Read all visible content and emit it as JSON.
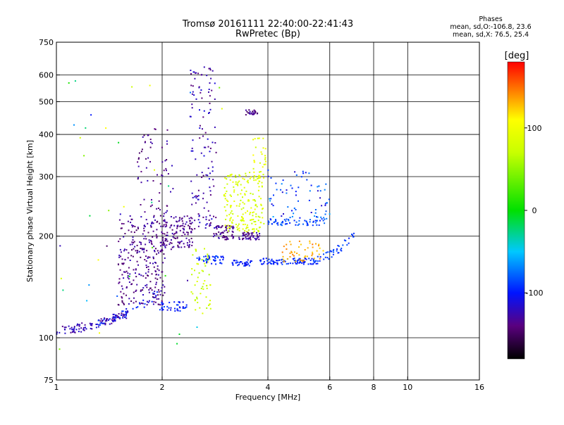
{
  "header": {
    "title_line1": "Tromsø 20161111 22:40:00-22:41:43",
    "title_line2": "RwPretec (Bp)"
  },
  "phases_box": {
    "heading": "Phases",
    "line_o": "mean, sd,O:-106.8, 23.6",
    "line_x": "mean, sd,X:  76.5, 25.4"
  },
  "chart_data": {
    "type": "scatter",
    "title": "Tromsø 20161111 22:40:00-22:41:43",
    "subtitle": "RwPretec (Bp)",
    "xlabel": "Frequency [MHz]",
    "ylabel": "Stationary phase Virtual Height [km]",
    "x_scale": "log",
    "y_scale": "log",
    "xlim": [
      1,
      16
    ],
    "ylim": [
      75,
      750
    ],
    "x_ticks": [
      1,
      2,
      4,
      6,
      8,
      10,
      16
    ],
    "x_tick_labels": [
      "1",
      "2",
      "4",
      "6",
      "8",
      "10",
      "16"
    ],
    "y_ticks": [
      75,
      100,
      200,
      300,
      400,
      500,
      600,
      750
    ],
    "y_tick_labels": [
      "75",
      "100",
      "200",
      "300",
      "400",
      "500",
      "600",
      "750"
    ],
    "grid": true,
    "colorbar": {
      "label": "[deg]",
      "range": [
        -180,
        180
      ],
      "ticks": [
        100,
        0,
        -100
      ],
      "tick_labels": [
        "100",
        "0",
        "-100"
      ],
      "stops": [
        {
          "value": -180,
          "color": "#000000"
        },
        {
          "value": -140,
          "color": "#5a007f"
        },
        {
          "value": -100,
          "color": "#0014ff"
        },
        {
          "value": -50,
          "color": "#00c8ff"
        },
        {
          "value": 0,
          "color": "#00e000"
        },
        {
          "value": 70,
          "color": "#c8ff00"
        },
        {
          "value": 110,
          "color": "#ffff00"
        },
        {
          "value": 140,
          "color": "#ff9000"
        },
        {
          "value": 180,
          "color": "#ff0000"
        }
      ]
    },
    "clusters": [
      {
        "f": [
          1.0,
          1.6
        ],
        "h": [
          105,
          118
        ],
        "phase": [
          -140,
          -110
        ],
        "n": 110,
        "shape": "rising"
      },
      {
        "f": [
          1.3,
          1.95
        ],
        "h": [
          112,
          135
        ],
        "phase": [
          -110,
          -85
        ],
        "n": 40,
        "shape": "rising"
      },
      {
        "f": [
          1.5,
          2.05
        ],
        "h": [
          125,
          230
        ],
        "phase": [
          -150,
          -120
        ],
        "n": 260,
        "shape": "band"
      },
      {
        "f": [
          1.7,
          2.15
        ],
        "h": [
          180,
          420
        ],
        "phase": [
          -150,
          -120
        ],
        "n": 90,
        "shape": "band"
      },
      {
        "f": [
          1.95,
          2.35
        ],
        "h": [
          120,
          128
        ],
        "phase": [
          -110,
          -85
        ],
        "n": 40,
        "shape": "flat"
      },
      {
        "f": [
          2.0,
          2.45
        ],
        "h": [
          185,
          230
        ],
        "phase": [
          -150,
          -120
        ],
        "n": 120,
        "shape": "band"
      },
      {
        "f": [
          2.4,
          2.85
        ],
        "h": [
          210,
          640
        ],
        "phase": [
          -145,
          -110
        ],
        "n": 130,
        "shape": "band"
      },
      {
        "f": [
          2.4,
          2.75
        ],
        "h": [
          118,
          185
        ],
        "phase": [
          60,
          90
        ],
        "n": 55,
        "shape": "band"
      },
      {
        "f": [
          2.5,
          3.0
        ],
        "h": [
          165,
          175
        ],
        "phase": [
          -105,
          -85
        ],
        "n": 40,
        "shape": "flat"
      },
      {
        "f": [
          2.8,
          3.2
        ],
        "h": [
          195,
          215
        ],
        "phase": [
          -150,
          -120
        ],
        "n": 60,
        "shape": "flat"
      },
      {
        "f": [
          3.0,
          3.9
        ],
        "h": [
          205,
          310
        ],
        "phase": [
          65,
          100
        ],
        "n": 180,
        "shape": "band"
      },
      {
        "f": [
          3.6,
          3.95
        ],
        "h": [
          280,
          390
        ],
        "phase": [
          70,
          110
        ],
        "n": 40,
        "shape": "band"
      },
      {
        "f": [
          3.15,
          3.6
        ],
        "h": [
          163,
          170
        ],
        "phase": [
          -110,
          -90
        ],
        "n": 35,
        "shape": "flat"
      },
      {
        "f": [
          3.3,
          3.8
        ],
        "h": [
          195,
          205
        ],
        "phase": [
          -150,
          -120
        ],
        "n": 45,
        "shape": "flat"
      },
      {
        "f": [
          3.45,
          3.75
        ],
        "h": [
          455,
          475
        ],
        "phase": [
          -150,
          -120
        ],
        "n": 25,
        "shape": "flat"
      },
      {
        "f": [
          3.8,
          5.5
        ],
        "h": [
          165,
          172
        ],
        "phase": [
          -105,
          -85
        ],
        "n": 90,
        "shape": "flat"
      },
      {
        "f": [
          4.0,
          5.8
        ],
        "h": [
          215,
          225
        ],
        "phase": [
          -100,
          -75
        ],
        "n": 60,
        "shape": "flat"
      },
      {
        "f": [
          4.4,
          5.8
        ],
        "h": [
          168,
          195
        ],
        "phase": [
          120,
          150
        ],
        "n": 50,
        "shape": "band"
      },
      {
        "f": [
          5.5,
          7.1
        ],
        "h": [
          170,
          205
        ],
        "phase": [
          -100,
          -80
        ],
        "n": 40,
        "shape": "rising"
      },
      {
        "f": [
          4.0,
          6.0
        ],
        "h": [
          225,
          320
        ],
        "phase": [
          -120,
          -60
        ],
        "n": 70,
        "shape": "band"
      },
      {
        "f": [
          1.0,
          3.0
        ],
        "h": [
          85,
          600
        ],
        "phase": [
          -150,
          120
        ],
        "n": 40,
        "shape": "sparse"
      }
    ]
  }
}
